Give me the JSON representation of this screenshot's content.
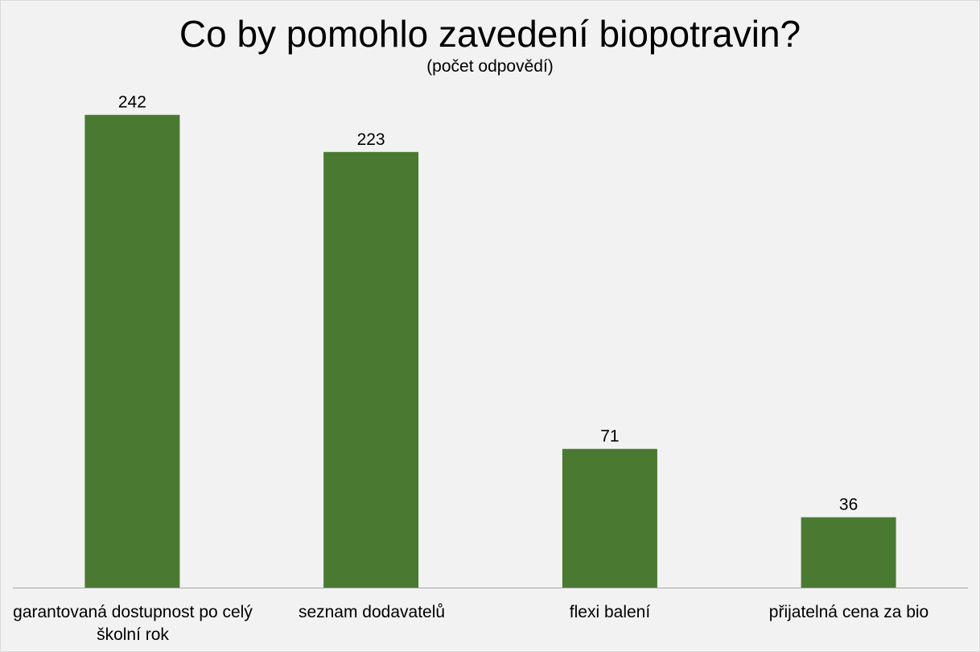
{
  "chart_data": {
    "type": "bar",
    "title": "Co by pomohlo zavedení biopotravin?",
    "subtitle": "(počet odpovědí)",
    "categories": [
      "garantovaná dostupnost po celý školní rok",
      "seznam dodavatelů",
      "flexi balení",
      "přijatelná cena za bio"
    ],
    "values": [
      242,
      223,
      71,
      36
    ],
    "ylim": [
      0,
      260
    ],
    "grid": false,
    "legend": "none",
    "bar_color": "#4a7a32",
    "axis_color": "#a6a6a6"
  }
}
